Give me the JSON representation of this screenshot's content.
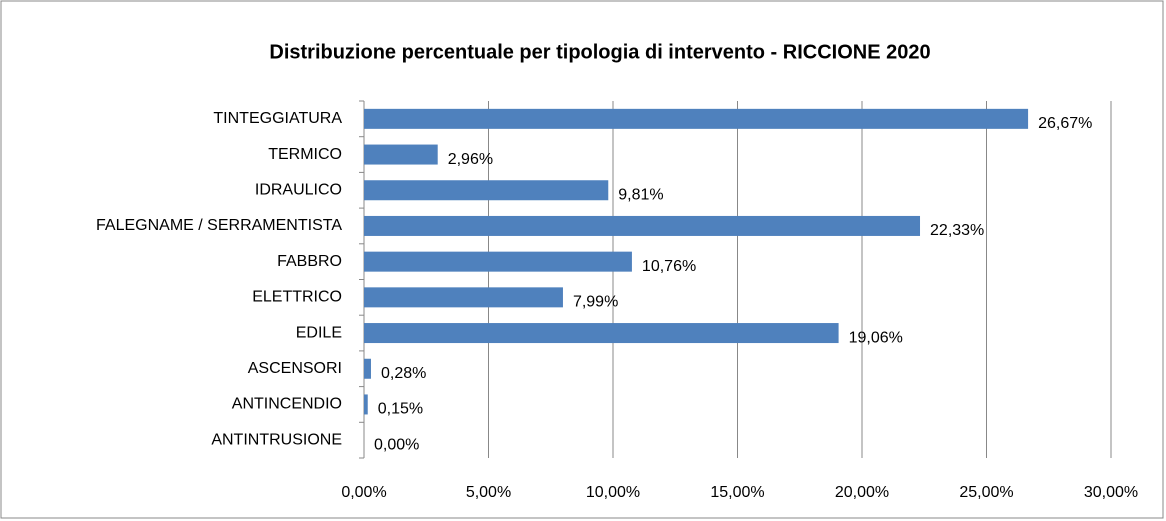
{
  "chart_data": {
    "type": "bar",
    "orientation": "horizontal",
    "title": "Distribuzione percentuale per tipologia di intervento - RICCIONE 2020",
    "categories": [
      "TINTEGGIATURA",
      "TERMICO",
      "IDRAULICO",
      "FALEGNAME / SERRAMENTISTA",
      "FABBRO",
      "ELETTRICO",
      "EDILE",
      "ASCENSORI",
      "ANTINCENDIO",
      "ANTINTRUSIONE"
    ],
    "values": [
      26.67,
      2.96,
      9.81,
      22.33,
      10.76,
      7.99,
      19.06,
      0.28,
      0.15,
      0.0
    ],
    "value_labels": [
      "26,67%",
      "2,96%",
      "9,81%",
      "22,33%",
      "10,76%",
      "7,99%",
      "19,06%",
      "0,28%",
      "0,15%",
      "0,00%"
    ],
    "color": "#4f81bd",
    "xlim": [
      0,
      30
    ],
    "xticks": [
      {
        "value": 0,
        "label": "0,00%"
      },
      {
        "value": 5,
        "label": "5,00%"
      },
      {
        "value": 10,
        "label": "10,00%"
      },
      {
        "value": 15,
        "label": "15,00%"
      },
      {
        "value": 20,
        "label": "20,00%"
      },
      {
        "value": 25,
        "label": "25,00%"
      },
      {
        "value": 30,
        "label": "30,00%"
      }
    ],
    "grid": true
  }
}
